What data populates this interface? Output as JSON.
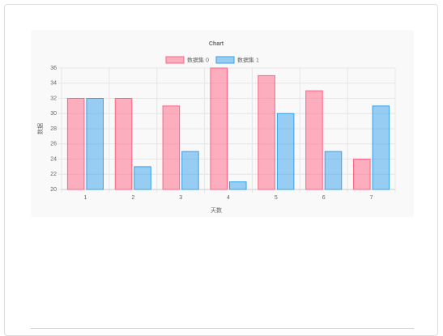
{
  "chart_data": {
    "type": "bar",
    "title": "Chart",
    "x_label": "天数",
    "y_label": "数据",
    "categories": [
      "1",
      "2",
      "3",
      "4",
      "5",
      "6",
      "7"
    ],
    "series": [
      {
        "name": "数据集 0",
        "color": "#ff6384",
        "values": [
          32,
          32,
          31,
          36,
          35,
          33,
          24
        ]
      },
      {
        "name": "数据集 1",
        "color": "#36a2eb",
        "values": [
          32,
          23,
          25,
          21,
          30,
          25,
          31
        ]
      }
    ],
    "ylim": [
      20,
      36
    ],
    "yticks": [
      20,
      22,
      24,
      26,
      28,
      30,
      32,
      34,
      36
    ],
    "grid": true,
    "legend": "top"
  }
}
